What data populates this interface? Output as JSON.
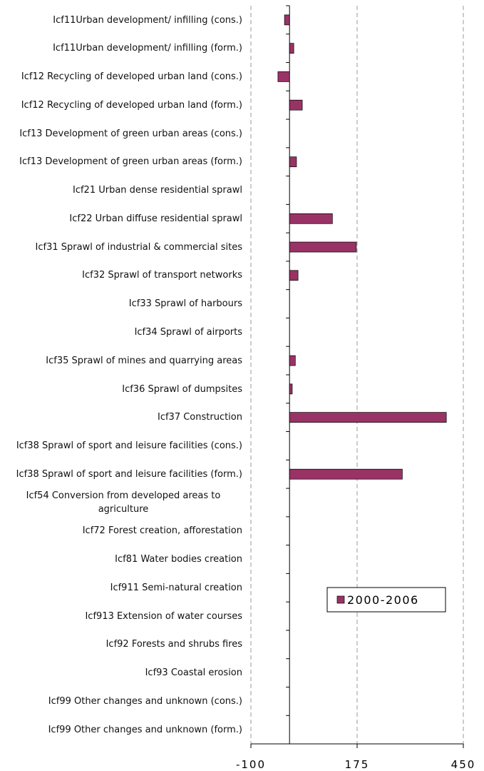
{
  "chart_data": {
    "type": "barh",
    "categories": [
      "Icf11Urban development/ infilling (cons.)",
      "Icf11Urban development/ infilling (form.)",
      "Icf12 Recycling of developed urban land (cons.)",
      "Icf12 Recycling of developed urban land (form.)",
      "Icf13 Development of green urban areas (cons.)",
      "Icf13 Development of green urban areas (form.)",
      "Icf21 Urban dense residential sprawl",
      "Icf22 Urban diffuse residential sprawl",
      "Icf31 Sprawl of industrial & commercial sites",
      "Icf32 Sprawl of transport networks",
      "Icf33 Sprawl of harbours",
      "Icf34 Sprawl of airports",
      "Icf35 Sprawl of mines and quarrying areas",
      "Icf36 Sprawl of dumpsites",
      "Icf37 Construction",
      "Icf38 Sprawl of sport and leisure facilities (cons.)",
      "Icf38 Sprawl of sport and leisure facilities (form.)",
      "Icf54 Conversion from developed areas to agriculture",
      "Icf72 Forest creation, afforestation",
      "Icf81 Water bodies creation",
      "Icf911 Semi-natural creation",
      "Icf913 Extension of water courses",
      "Icf92 Forests and shrubs fires",
      "Icf93 Coastal erosion",
      "Icf99 Other changes and unknown (cons.)",
      "Icf99 Other changes and unknown (form.)"
    ],
    "series": [
      {
        "name": "2000-2006",
        "color": "#993366",
        "values": [
          -13,
          11,
          -30,
          33,
          0,
          18,
          0,
          111,
          173,
          22,
          0,
          0,
          15,
          7,
          406,
          0,
          292,
          0,
          0,
          0,
          0,
          0,
          0,
          0,
          0,
          0
        ]
      }
    ],
    "xlim": [
      -100,
      450
    ],
    "xticks": [
      -100,
      175,
      450
    ],
    "grid": true,
    "legend": "right"
  }
}
